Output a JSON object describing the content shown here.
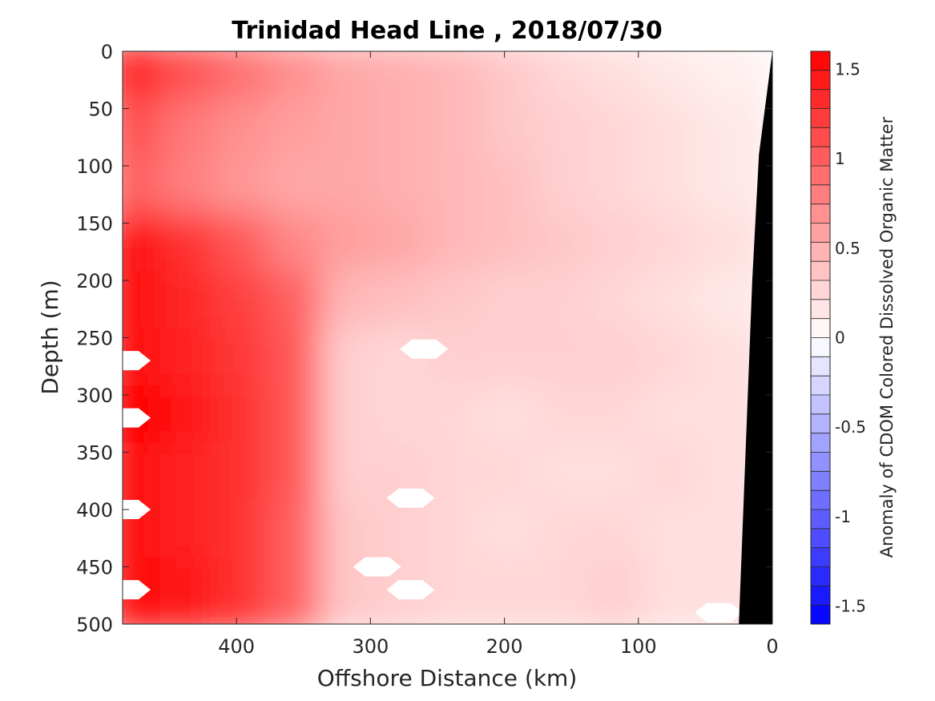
{
  "chart_data": {
    "type": "heatmap",
    "title": "Trinidad Head Line , 2018/07/30",
    "xlabel": "Offshore Distance (km)",
    "ylabel": "Depth (m)",
    "xlim": [
      485,
      0
    ],
    "ylim": [
      0,
      500
    ],
    "x_reversed": true,
    "y_reversed": true,
    "x_ticks": [
      400,
      300,
      200,
      100,
      0
    ],
    "x_tick_labels": [
      "400",
      "300",
      "200",
      "100",
      "0"
    ],
    "y_ticks": [
      0,
      50,
      100,
      150,
      200,
      250,
      300,
      350,
      400,
      450,
      500
    ],
    "y_tick_labels": [
      "0",
      "50",
      "100",
      "150",
      "200",
      "250",
      "300",
      "350",
      "400",
      "450",
      "500"
    ],
    "colorbar": {
      "label": "Anomaly of CDOM Colored Dissolved Organic Matter",
      "range": [
        -1.6,
        1.6
      ],
      "levels": 30,
      "ticks": [
        1.5,
        1,
        0.5,
        0,
        -0.5,
        -1,
        -1.5
      ],
      "tick_labels": [
        "1.5",
        "1",
        "0.5",
        "0",
        "-0.5",
        "-1",
        "-1.5"
      ],
      "colormap": "blue-white-red"
    },
    "x_centers_km": [
      470,
      430,
      390,
      350,
      310,
      270,
      230,
      190,
      150,
      110,
      70,
      30
    ],
    "depth_centers_m": [
      25,
      75,
      125,
      175,
      225,
      275,
      325,
      375,
      425,
      475
    ],
    "values": [
      [
        1.4,
        1.1,
        0.9,
        0.7,
        0.55,
        0.5,
        0.45,
        0.35,
        0.25,
        0.2,
        0.15,
        0.1
      ],
      [
        1.1,
        0.85,
        0.7,
        0.6,
        0.55,
        0.5,
        0.45,
        0.35,
        0.3,
        0.25,
        0.2,
        0.15
      ],
      [
        1.0,
        0.8,
        0.65,
        0.55,
        0.55,
        0.5,
        0.45,
        0.4,
        0.3,
        0.25,
        0.2,
        0.15
      ],
      [
        1.55,
        1.3,
        1.05,
        0.75,
        0.6,
        0.55,
        0.45,
        0.4,
        0.35,
        0.3,
        0.25,
        0.2
      ],
      [
        1.5,
        1.35,
        1.2,
        1.0,
        0.45,
        0.4,
        0.35,
        0.3,
        0.3,
        0.25,
        0.2,
        0.15
      ],
      [
        1.55,
        1.4,
        1.25,
        1.05,
        0.3,
        0.25,
        0.3,
        0.3,
        0.3,
        0.3,
        0.25,
        0.2
      ],
      [
        1.6,
        1.45,
        1.3,
        1.05,
        0.3,
        0.25,
        0.25,
        0.2,
        0.25,
        0.25,
        0.2,
        0.2
      ],
      [
        1.55,
        1.4,
        1.3,
        1.05,
        0.3,
        0.3,
        0.25,
        0.25,
        0.2,
        0.2,
        0.25,
        0.2
      ],
      [
        1.5,
        1.4,
        1.3,
        1.0,
        0.35,
        0.3,
        0.25,
        0.2,
        0.25,
        0.25,
        0.2,
        0.2
      ],
      [
        1.55,
        1.45,
        1.3,
        1.0,
        0.35,
        0.3,
        0.25,
        0.25,
        0.25,
        0.3,
        0.2,
        0.2
      ]
    ],
    "missing_data_patches": [
      {
        "x": 260,
        "depth": 260
      },
      {
        "x": 270,
        "depth": 390
      },
      {
        "x": 295,
        "depth": 450
      },
      {
        "x": 270,
        "depth": 470
      },
      {
        "x": 40,
        "depth": 490
      },
      {
        "x": 482,
        "depth": 270
      },
      {
        "x": 482,
        "depth": 320
      },
      {
        "x": 482,
        "depth": 400
      },
      {
        "x": 482,
        "depth": 470
      }
    ],
    "bathymetry_polygon": [
      [
        0,
        0
      ],
      [
        0,
        500
      ],
      [
        25,
        500
      ],
      [
        15,
        200
      ],
      [
        10,
        90
      ],
      [
        0,
        0
      ]
    ]
  }
}
